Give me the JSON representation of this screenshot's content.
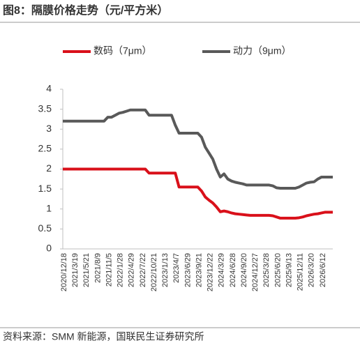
{
  "chart_data": {
    "type": "line",
    "title": "图8：隔膜价格走势（元/平方米）",
    "source": "资料来源：SMM 新能源，国联民生证券研究所",
    "legend": "top",
    "categories": [
      "2020/12/18",
      null,
      null,
      "2021/3/19",
      null,
      null,
      "2021/5/21",
      null,
      null,
      "2021/8/9",
      null,
      null,
      "2021/11/5",
      null,
      null,
      "2022/1/28",
      null,
      null,
      "2022/4/29",
      null,
      null,
      "2022/7/22",
      null,
      null,
      "2022/10/21",
      null,
      null,
      "2023/1/13",
      null,
      null,
      "2023/4/7",
      null,
      null,
      "2023/6/29",
      null,
      null,
      "2023/9/21",
      null,
      null,
      "2023/12/22",
      null,
      null,
      "2024/3/29",
      null,
      null,
      "2024/6/28",
      null,
      null,
      "2024/9/20",
      null,
      null,
      "2024/12/27",
      null,
      null,
      "2025/3/28",
      null,
      null,
      "2025/6/20",
      null,
      null,
      "2025/9/13",
      null,
      null,
      "2025/12/11",
      null,
      null,
      "2026/3/20",
      null,
      null,
      "2026/6/12",
      null,
      null,
      null
    ],
    "series": [
      {
        "name": "数码（7μm）",
        "color": "#d9101a",
        "values": [
          2,
          2,
          2,
          2,
          2,
          2,
          2,
          2,
          2,
          2,
          2,
          2,
          2,
          2,
          2,
          2,
          2,
          2,
          2,
          2,
          2,
          2,
          2,
          1.9,
          1.9,
          1.9,
          1.9,
          1.9,
          1.9,
          1.9,
          1.9,
          1.55,
          1.55,
          1.55,
          1.55,
          1.55,
          1.55,
          1.45,
          1.3,
          1.22,
          1.15,
          1.05,
          0.93,
          0.95,
          0.93,
          0.9,
          0.88,
          0.87,
          0.86,
          0.85,
          0.84,
          0.84,
          0.84,
          0.84,
          0.84,
          0.84,
          0.83,
          0.8,
          0.77,
          0.77,
          0.77,
          0.77,
          0.77,
          0.78,
          0.8,
          0.83,
          0.85,
          0.87,
          0.88,
          0.9,
          0.92,
          0.92,
          0.92
        ]
      },
      {
        "name": "动力（9μm）",
        "color": "#595959",
        "values": [
          3.2,
          3.2,
          3.2,
          3.2,
          3.2,
          3.2,
          3.2,
          3.2,
          3.2,
          3.2,
          3.2,
          3.2,
          3.3,
          3.3,
          3.35,
          3.4,
          3.42,
          3.45,
          3.48,
          3.48,
          3.48,
          3.48,
          3.48,
          3.35,
          3.35,
          3.35,
          3.35,
          3.35,
          3.35,
          3.35,
          3.1,
          2.9,
          2.9,
          2.9,
          2.9,
          2.9,
          2.9,
          2.8,
          2.55,
          2.4,
          2.25,
          2.0,
          1.8,
          1.88,
          1.75,
          1.7,
          1.67,
          1.65,
          1.63,
          1.6,
          1.6,
          1.6,
          1.6,
          1.6,
          1.6,
          1.6,
          1.58,
          1.53,
          1.52,
          1.52,
          1.52,
          1.52,
          1.52,
          1.55,
          1.6,
          1.65,
          1.67,
          1.68,
          1.75,
          1.8,
          1.8,
          1.8,
          1.8
        ]
      }
    ],
    "ylim": [
      0,
      4
    ],
    "yticks": [
      0,
      0.5,
      1,
      1.5,
      2,
      2.5,
      3,
      3.5,
      4
    ],
    "grid": false
  }
}
